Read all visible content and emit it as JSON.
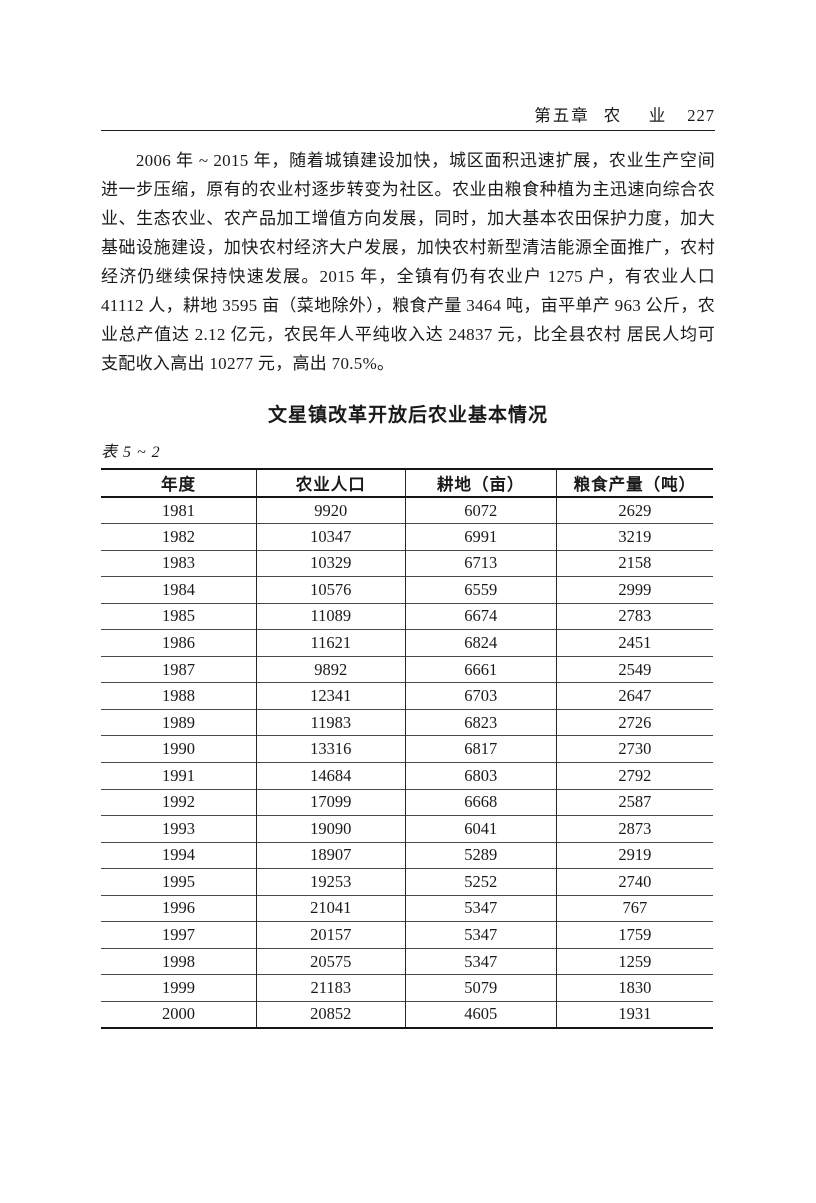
{
  "header": {
    "chapter": "第五章",
    "section": "农　业",
    "page_number": "227"
  },
  "body_paragraph": "2006 年 ~ 2015 年，随着城镇建设加快，城区面积迅速扩展，农业生产空间进一步压缩，原有的农业村逐步转变为社区。农业由粮食种植为主迅速向综合农业、生态农业、农产品加工增值方向发展，同时，加大基本农田保护力度，加大基础设施建设，加快农村经济大户发展，加快农村新型清洁能源全面推广，农村经济仍继续保持快速发展。2015 年，全镇有仍有农业户 1275 户，有农业人口 41112 人，耕地 3595 亩（菜地除外），粮食产量 3464 吨，亩平单产 963 公斤，农业总产值达 2.12 亿元，农民年人平纯收入达 24837 元，比全县农村 居民人均可支配收入高出 10277 元，高出 70.5%。",
  "table_title": "文星镇改革开放后农业基本情况",
  "table_label": "表 5 ~ 2",
  "table": {
    "columns": [
      "年度",
      "农业人口",
      "耕地（亩）",
      "粮食产量（吨）"
    ],
    "rows": [
      [
        "1981",
        "9920",
        "6072",
        "2629"
      ],
      [
        "1982",
        "10347",
        "6991",
        "3219"
      ],
      [
        "1983",
        "10329",
        "6713",
        "2158"
      ],
      [
        "1984",
        "10576",
        "6559",
        "2999"
      ],
      [
        "1985",
        "11089",
        "6674",
        "2783"
      ],
      [
        "1986",
        "11621",
        "6824",
        "2451"
      ],
      [
        "1987",
        "9892",
        "6661",
        "2549"
      ],
      [
        "1988",
        "12341",
        "6703",
        "2647"
      ],
      [
        "1989",
        "11983",
        "6823",
        "2726"
      ],
      [
        "1990",
        "13316",
        "6817",
        "2730"
      ],
      [
        "1991",
        "14684",
        "6803",
        "2792"
      ],
      [
        "1992",
        "17099",
        "6668",
        "2587"
      ],
      [
        "1993",
        "19090",
        "6041",
        "2873"
      ],
      [
        "1994",
        "18907",
        "5289",
        "2919"
      ],
      [
        "1995",
        "19253",
        "5252",
        "2740"
      ],
      [
        "1996",
        "21041",
        "5347",
        "767"
      ],
      [
        "1997",
        "20157",
        "5347",
        "1759"
      ],
      [
        "1998",
        "20575",
        "5347",
        "1259"
      ],
      [
        "1999",
        "21183",
        "5079",
        "1830"
      ],
      [
        "2000",
        "20852",
        "4605",
        "1931"
      ]
    ]
  }
}
